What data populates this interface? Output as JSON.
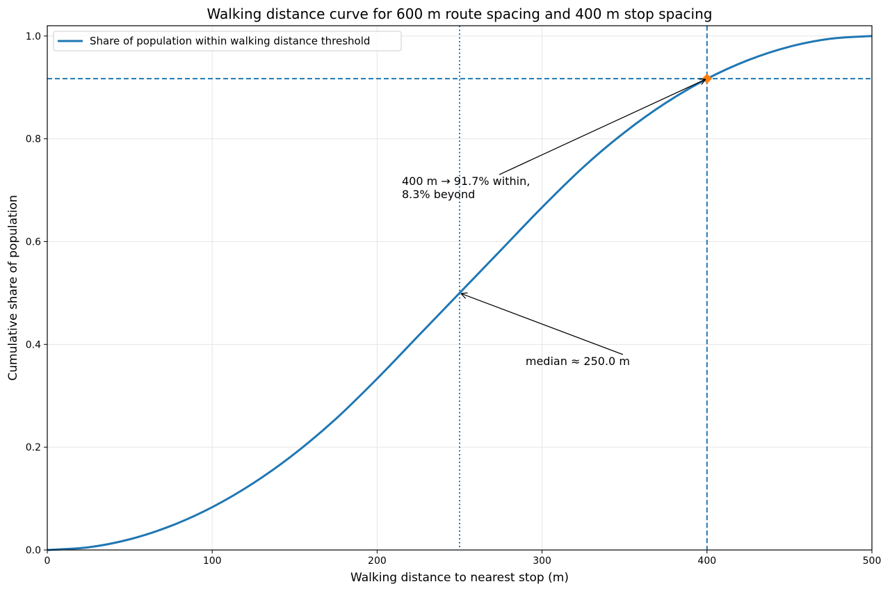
{
  "chart_data": {
    "type": "line",
    "title": "Walking distance curve for 600 m route spacing and 400 m stop spacing",
    "xlabel": "Walking distance to nearest stop (m)",
    "ylabel": "Cumulative share of population",
    "xlim": [
      0,
      500
    ],
    "ylim": [
      0,
      1.02
    ],
    "x_ticks": [
      0,
      100,
      200,
      300,
      400,
      500
    ],
    "x_tick_labels": [
      "0",
      "100",
      "200",
      "300",
      "400",
      "500"
    ],
    "y_ticks": [
      0,
      0.2,
      0.4,
      0.6,
      0.8,
      1.0
    ],
    "y_tick_labels": [
      "0.0",
      "0.2",
      "0.4",
      "0.6",
      "0.8",
      "1.0"
    ],
    "grid": true,
    "legend_position": "top-left",
    "colors": {
      "line": "#1f77b4",
      "marker": "#ff7f0e",
      "grid": "#e5e5e5"
    },
    "series": [
      {
        "name": "Share of population within walking distance threshold",
        "x": [
          0,
          25,
          50,
          75,
          100,
          125,
          150,
          175,
          200,
          225,
          250,
          275,
          300,
          325,
          350,
          375,
          400,
          425,
          450,
          475,
          500
        ],
        "y": [
          0,
          0.0052,
          0.0208,
          0.0469,
          0.0833,
          0.1302,
          0.1875,
          0.2552,
          0.3333,
          0.4167,
          0.5,
          0.5833,
          0.6667,
          0.7448,
          0.8125,
          0.8698,
          0.9167,
          0.9531,
          0.9792,
          0.9948,
          1.0
        ]
      }
    ],
    "reference_lines": [
      {
        "orientation": "vertical",
        "value": 250,
        "style": "dotted"
      },
      {
        "orientation": "vertical",
        "value": 400,
        "style": "dashed"
      },
      {
        "orientation": "horizontal",
        "value": 0.917,
        "style": "dashed"
      }
    ],
    "highlight_point": {
      "x": 400,
      "y": 0.917
    },
    "annotations": [
      {
        "lines": [
          "400 m → 91.7% within,",
          "8.3% beyond"
        ],
        "text_x": 215,
        "text_y": 0.71,
        "target_x": 400,
        "target_y": 0.917
      },
      {
        "lines": [
          "median ≈ 250.0 m"
        ],
        "text_x": 290,
        "text_y": 0.36,
        "target_x": 250,
        "target_y": 0.5
      }
    ]
  }
}
